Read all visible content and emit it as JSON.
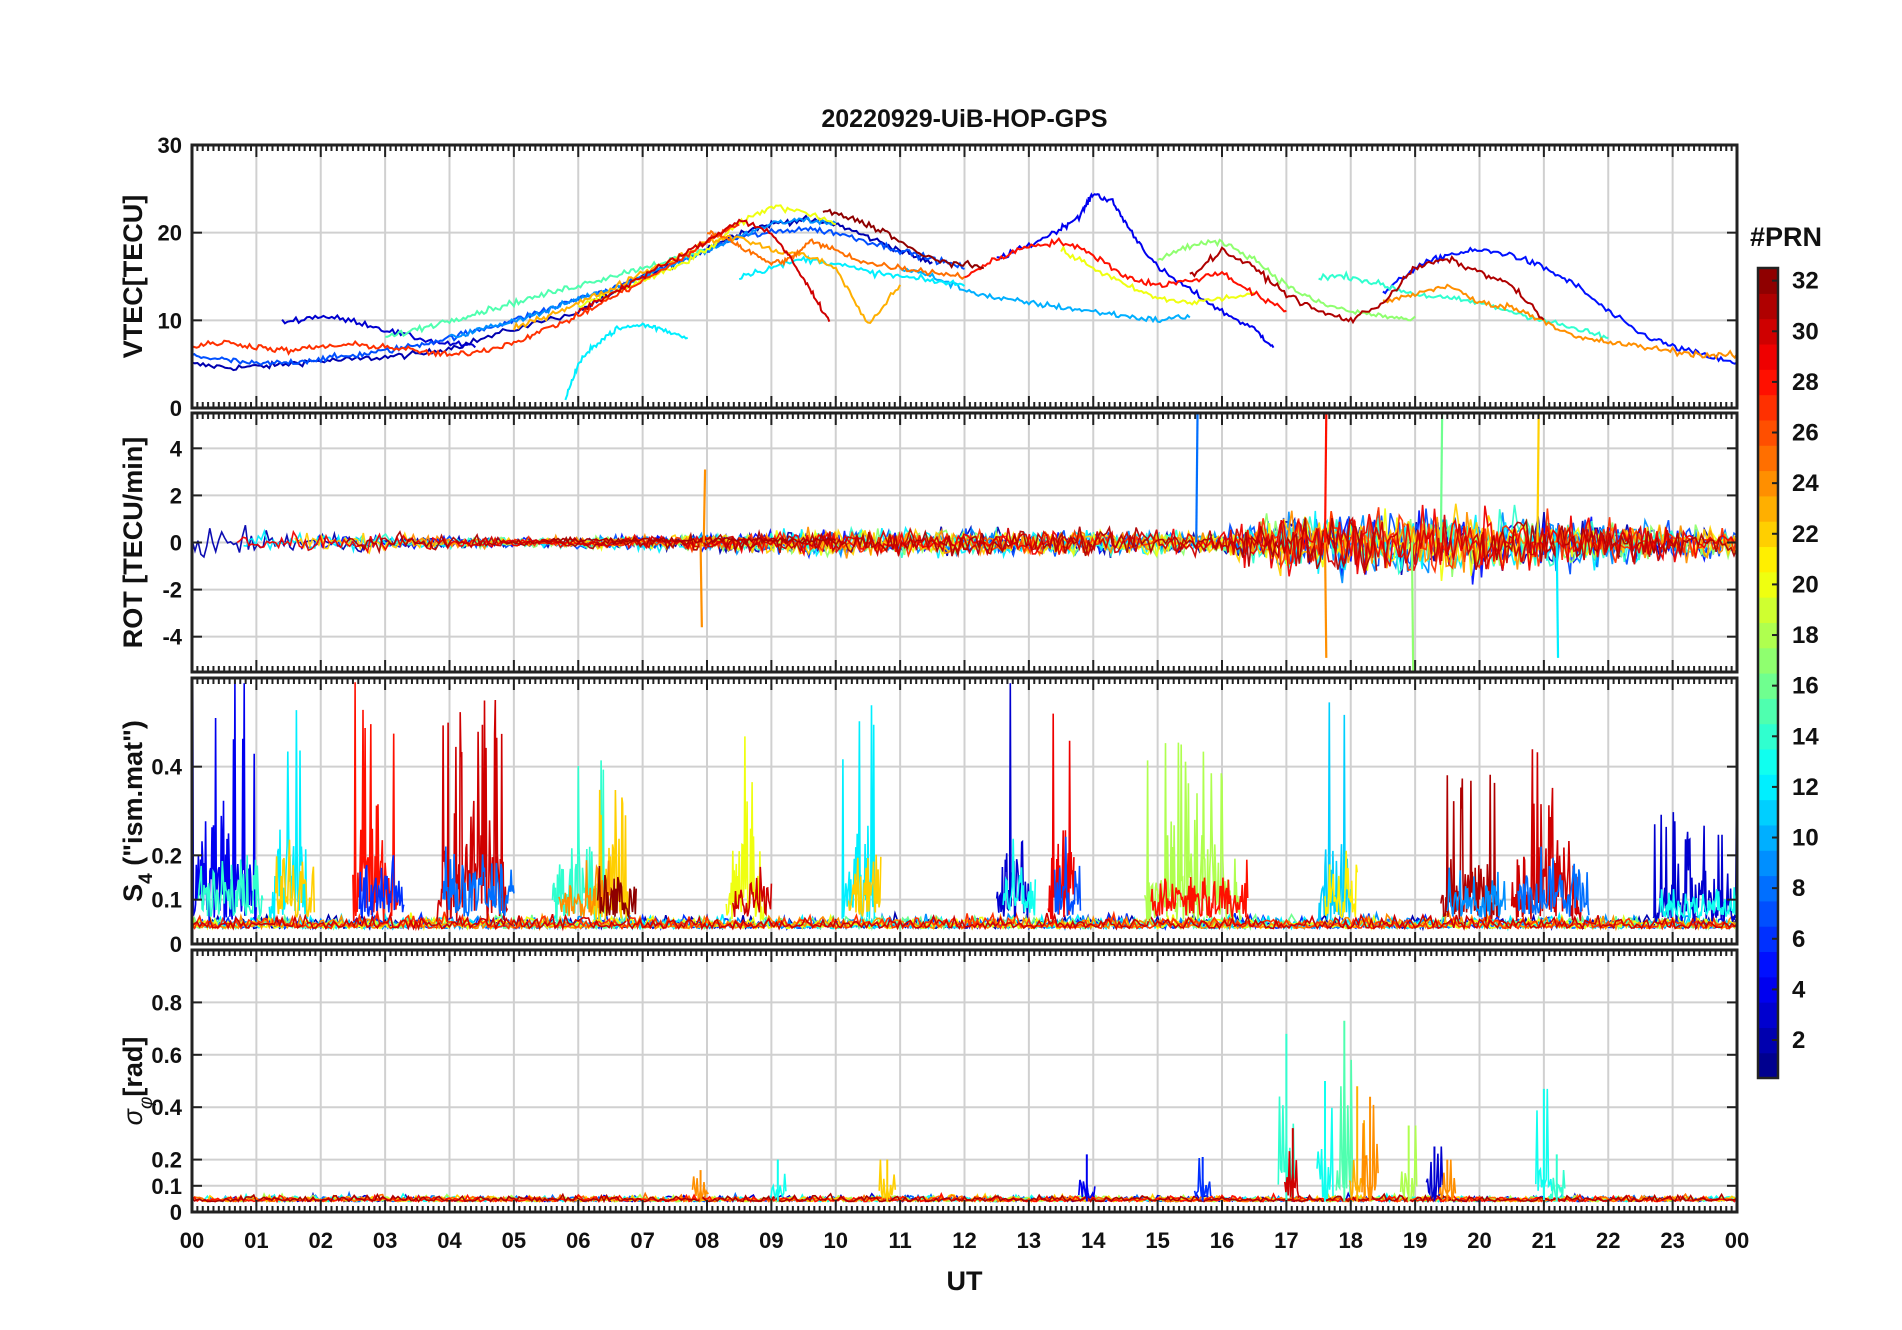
{
  "figure": {
    "title": "20220929-UiB-HOP-GPS",
    "xlabel": "UT",
    "x_ticks": [
      "00",
      "01",
      "02",
      "03",
      "04",
      "05",
      "06",
      "07",
      "08",
      "09",
      "10",
      "11",
      "12",
      "13",
      "14",
      "15",
      "16",
      "17",
      "18",
      "19",
      "20",
      "21",
      "22",
      "23",
      "00"
    ]
  },
  "colorbar": {
    "title": "#PRN",
    "range": [
      1,
      32
    ],
    "ticks": [
      "2",
      "4",
      "6",
      "8",
      "10",
      "12",
      "14",
      "16",
      "18",
      "20",
      "22",
      "24",
      "26",
      "28",
      "30",
      "32"
    ],
    "colormap": "jet",
    "colors": [
      "#00007f",
      "#0000ff",
      "#007fff",
      "#00ffff",
      "#7fff7f",
      "#ffff00",
      "#ff7f00",
      "#ff0000",
      "#7f0000"
    ]
  },
  "chart_data": [
    {
      "type": "line",
      "panel": "vtec",
      "ylabel": "VTEC[TECU]",
      "ylim": [
        0,
        30
      ],
      "y_ticks": [
        0,
        10,
        20,
        30
      ],
      "grid": true,
      "x_range_hours": [
        0,
        24
      ],
      "series": [
        {
          "prn": 2,
          "x": [
            0,
            0.6,
            1.2,
            1.8,
            2.4,
            3,
            3.6,
            4.2,
            5,
            6,
            6.5,
            7,
            7.5,
            8,
            8.5,
            9,
            9.5,
            10,
            10.5,
            11,
            11.5
          ],
          "y": [
            5,
            4.6,
            4.8,
            5.3,
            5.5,
            5.8,
            6.2,
            7.2,
            9,
            11,
            13,
            15,
            16.5,
            18.2,
            20,
            21,
            21.5,
            21,
            19.5,
            18,
            16.5
          ]
        },
        {
          "prn": 3,
          "x": [
            1.4,
            2,
            2.6,
            3.2,
            3.8,
            4.4
          ],
          "y": [
            9.8,
            10.5,
            9.8,
            8.5,
            7.5,
            7
          ]
        },
        {
          "prn": 4,
          "x": [
            12.5,
            13,
            13.5,
            13.8,
            14,
            14.3,
            14.6,
            15,
            15.5,
            16,
            16.5,
            16.8
          ],
          "y": [
            17,
            18.5,
            20.5,
            22,
            24.5,
            23.5,
            20,
            16,
            13.5,
            11,
            9,
            7
          ]
        },
        {
          "prn": 5,
          "x": [
            18.5,
            19,
            19.5,
            20,
            20.5,
            21,
            21.5,
            22,
            22.5,
            23,
            23.5,
            24
          ],
          "y": [
            13,
            16,
            17.5,
            18,
            17.5,
            16,
            14,
            11,
            8.5,
            7,
            6,
            5
          ]
        },
        {
          "prn": 7,
          "x": [
            0,
            0.5,
            1,
            1.5,
            2,
            2.5,
            3,
            3.5,
            4,
            4.5,
            5,
            5.5,
            6,
            6.5,
            7,
            7.5,
            8,
            8.5,
            9,
            9.5,
            10,
            10.5,
            11,
            11.5,
            12
          ],
          "y": [
            6,
            5.5,
            5,
            5.2,
            5.6,
            6,
            6.5,
            7.2,
            8,
            9,
            10,
            11.2,
            12.5,
            13.5,
            15,
            16.5,
            18,
            19.5,
            20,
            20.5,
            20,
            19,
            18,
            17,
            16
          ]
        },
        {
          "prn": 9,
          "x": [
            4,
            4.5,
            5,
            5.5,
            6,
            6.5,
            7,
            7.5,
            8,
            8.5,
            9,
            9.5,
            10
          ],
          "y": [
            8,
            9,
            10,
            11,
            12.5,
            13.5,
            15,
            16.5,
            18,
            19.5,
            21,
            21.5,
            21
          ]
        },
        {
          "prn": 10,
          "x": [
            11,
            11.5,
            12,
            12.5,
            13,
            13.5,
            14,
            14.5,
            15,
            15.5
          ],
          "y": [
            16,
            15,
            13.5,
            12.5,
            12,
            11.5,
            11,
            10.5,
            10,
            10.5
          ]
        },
        {
          "prn": 12,
          "x": [
            5.8,
            6,
            6.3,
            6.6,
            7,
            7.3,
            7.7
          ],
          "y": [
            1,
            5,
            7.5,
            9,
            9.5,
            9,
            8
          ]
        },
        {
          "prn": 12,
          "x": [
            8.5,
            9,
            9.5,
            10,
            10.5,
            11,
            11.5,
            12
          ],
          "y": [
            15,
            16,
            17,
            16.5,
            15.5,
            15,
            14.5,
            14
          ]
        },
        {
          "prn": 14,
          "x": [
            17.5,
            18,
            18.5,
            19,
            19.5,
            20,
            20.5,
            21,
            21.5,
            22
          ],
          "y": [
            15,
            15,
            14,
            13,
            12.5,
            12,
            11,
            10,
            9,
            8
          ]
        },
        {
          "prn": 15,
          "x": [
            3,
            3.5,
            4,
            4.5,
            5,
            5.5,
            6,
            6.5,
            7,
            7.5,
            8
          ],
          "y": [
            8,
            9,
            10,
            11,
            12,
            13,
            14,
            15,
            16,
            17,
            18
          ]
        },
        {
          "prn": 17,
          "x": [
            15,
            15.5,
            16,
            16.5,
            17,
            17.5,
            18,
            18.5,
            19
          ],
          "y": [
            17,
            18.5,
            19,
            17,
            14,
            12,
            11,
            10.5,
            10
          ]
        },
        {
          "prn": 20,
          "x": [
            6,
            6.5,
            7,
            7.5,
            8,
            8.5,
            9,
            9.5,
            10
          ],
          "y": [
            11.5,
            13,
            14.5,
            16,
            18,
            21,
            23,
            22.5,
            21
          ]
        },
        {
          "prn": 20,
          "x": [
            13.5,
            14,
            14.5,
            15,
            15.5,
            16,
            16.5
          ],
          "y": [
            18,
            16,
            14,
            12.5,
            12,
            12.5,
            13
          ]
        },
        {
          "prn": 23,
          "x": [
            5,
            5.5,
            6,
            6.5,
            7,
            7.5,
            8,
            8.5,
            9,
            9.5,
            10,
            10.5,
            11
          ],
          "y": [
            9,
            10.5,
            12,
            13.5,
            15.5,
            17,
            19,
            19.5,
            18,
            17.5,
            16,
            9.5,
            14
          ]
        },
        {
          "prn": 24,
          "x": [
            18.5,
            19,
            19.5,
            20,
            20.5,
            21,
            21.5,
            22,
            22.5,
            23,
            23.5,
            24
          ],
          "y": [
            12,
            13,
            14,
            12,
            11.5,
            10,
            8,
            7.5,
            7,
            6.5,
            6,
            6
          ]
        },
        {
          "prn": 25,
          "x": [
            8,
            8.3,
            8.6,
            9,
            9.3,
            9.6,
            10,
            10.5,
            11,
            11.5,
            12
          ],
          "y": [
            20,
            19.5,
            18,
            16.5,
            17,
            19,
            18,
            16.5,
            16,
            15.5,
            15
          ]
        },
        {
          "prn": 27,
          "x": [
            0,
            0.5,
            1,
            1.5,
            2,
            2.5,
            3,
            3.5,
            4,
            4.5,
            5,
            5.5,
            6,
            6.5,
            7,
            7.5,
            8,
            8.5
          ],
          "y": [
            7,
            7.5,
            7,
            6.5,
            7,
            7.2,
            7,
            6.5,
            6,
            6.5,
            7.5,
            9,
            10.5,
            12.5,
            14.5,
            16.5,
            19,
            21
          ]
        },
        {
          "prn": 28,
          "x": [
            12,
            12.5,
            13,
            13.5,
            14,
            14.5,
            15,
            15.5,
            16,
            16.5,
            17
          ],
          "y": [
            15,
            17,
            18.5,
            19,
            17.5,
            15,
            14,
            14.5,
            15.5,
            13,
            11
          ]
        },
        {
          "prn": 30,
          "x": [
            6,
            6.5,
            7,
            7.5,
            8,
            8.5,
            9,
            9.3,
            9.6,
            9.9
          ],
          "y": [
            11,
            13,
            15,
            17,
            19,
            21.5,
            20,
            17,
            13.5,
            10
          ]
        },
        {
          "prn": 31,
          "x": [
            15.5,
            16,
            16.5,
            17,
            17.5,
            18,
            18.5,
            19,
            19.5,
            20,
            20.5,
            21
          ],
          "y": [
            15,
            18,
            16,
            13,
            11,
            10,
            12,
            16,
            17,
            15.5,
            14,
            10
          ]
        },
        {
          "prn": 32,
          "x": [
            9.8,
            10.3,
            10.8,
            11.3,
            11.8,
            12.3
          ],
          "y": [
            22.5,
            21.5,
            20,
            17.5,
            16.5,
            16
          ]
        }
      ]
    },
    {
      "type": "line",
      "panel": "rot",
      "ylabel": "ROT [TECU/min]",
      "ylim": [
        -5.5,
        5.5
      ],
      "y_ticks": [
        -4,
        -2,
        0,
        2,
        4
      ],
      "grid": true,
      "x_range_hours": [
        0,
        24
      ],
      "noise_profile": [
        {
          "hour": 0,
          "amp": 1.0
        },
        {
          "hour": 3,
          "amp": 0.6
        },
        {
          "hour": 5,
          "amp": 0.3
        },
        {
          "hour": 7,
          "amp": 0.5
        },
        {
          "hour": 10,
          "amp": 0.9
        },
        {
          "hour": 14,
          "amp": 0.9
        },
        {
          "hour": 16,
          "amp": 0.8
        },
        {
          "hour": 17,
          "amp": 2.2
        },
        {
          "hour": 19,
          "amp": 2.6
        },
        {
          "hour": 21,
          "amp": 2.0
        },
        {
          "hour": 24,
          "amp": 1.0
        }
      ],
      "spikes": [
        {
          "hour": 7.9,
          "value": -3.6,
          "prn": 24
        },
        {
          "hour": 7.95,
          "value": 3.1,
          "prn": 24
        },
        {
          "hour": 15.6,
          "value": 5.5,
          "prn": 8
        },
        {
          "hour": 17.6,
          "value": 5.5,
          "prn": 28
        },
        {
          "hour": 17.6,
          "value": -4.9,
          "prn": 24
        },
        {
          "hour": 18.95,
          "value": -5.5,
          "prn": 17
        },
        {
          "hour": 19.4,
          "value": 5.5,
          "prn": 16
        },
        {
          "hour": 20.9,
          "value": 5.5,
          "prn": 22
        },
        {
          "hour": 21.2,
          "value": -4.9,
          "prn": 12
        }
      ]
    },
    {
      "type": "line",
      "panel": "s4",
      "ylabel": "S_4 (\"ism.mat\")",
      "ylabel_main": "S",
      "ylabel_sub": "4",
      "ylabel_rest": " (\"ism.mat\")",
      "ylim": [
        0,
        0.6
      ],
      "y_ticks": [
        0,
        0.1,
        0.2,
        0.4
      ],
      "grid": true,
      "x_range_hours": [
        0,
        24
      ],
      "activity_bursts": [
        {
          "start": 0,
          "end": 1.0,
          "peak": 0.6,
          "prn": 4
        },
        {
          "start": 1.2,
          "end": 1.8,
          "peak": 0.55,
          "prn": 12
        },
        {
          "start": 2.5,
          "end": 3.2,
          "peak": 0.6,
          "prn": 28
        },
        {
          "start": 3.8,
          "end": 4.9,
          "peak": 0.6,
          "prn": 30
        },
        {
          "start": 5.6,
          "end": 6.4,
          "peak": 0.52,
          "prn": 14
        },
        {
          "start": 6.2,
          "end": 6.8,
          "peak": 0.38,
          "prn": 22
        },
        {
          "start": 8.3,
          "end": 8.9,
          "peak": 0.48,
          "prn": 20
        },
        {
          "start": 10.1,
          "end": 10.6,
          "peak": 0.56,
          "prn": 12
        },
        {
          "start": 12.5,
          "end": 13.0,
          "peak": 0.6,
          "prn": 3
        },
        {
          "start": 13.3,
          "end": 13.7,
          "peak": 0.6,
          "prn": 29
        },
        {
          "start": 14.8,
          "end": 16.3,
          "peak": 0.48,
          "prn": 18
        },
        {
          "start": 17.5,
          "end": 18.0,
          "peak": 0.6,
          "prn": 11
        },
        {
          "start": 19.4,
          "end": 20.3,
          "peak": 0.4,
          "prn": 31
        },
        {
          "start": 20.5,
          "end": 21.6,
          "peak": 0.58,
          "prn": 30
        },
        {
          "start": 22.7,
          "end": 24.0,
          "peak": 0.3,
          "prn": 3
        }
      ]
    },
    {
      "type": "line",
      "panel": "sigma_phi",
      "ylabel": "σ_φ[rad]",
      "ylabel_main": "σ",
      "ylabel_sub": "φ",
      "ylabel_rest": "[rad]",
      "ylim": [
        0,
        1.0
      ],
      "y_ticks": [
        0,
        0.1,
        0.2,
        0.4,
        0.6,
        0.8
      ],
      "grid": true,
      "x_range_hours": [
        0,
        24
      ],
      "spikes": [
        {
          "hour": 7.9,
          "value": 0.16,
          "prn": 24
        },
        {
          "hour": 9.1,
          "value": 0.2,
          "prn": 13
        },
        {
          "hour": 10.8,
          "value": 0.2,
          "prn": 22
        },
        {
          "hour": 13.9,
          "value": 0.22,
          "prn": 4
        },
        {
          "hour": 15.7,
          "value": 0.21,
          "prn": 6
        },
        {
          "hour": 17.0,
          "value": 0.68,
          "prn": 14
        },
        {
          "hour": 17.1,
          "value": 0.32,
          "prn": 30
        },
        {
          "hour": 17.6,
          "value": 0.5,
          "prn": 13
        },
        {
          "hour": 17.9,
          "value": 0.73,
          "prn": 15
        },
        {
          "hour": 18.1,
          "value": 0.48,
          "prn": 23
        },
        {
          "hour": 18.3,
          "value": 0.44,
          "prn": 24
        },
        {
          "hour": 18.9,
          "value": 0.33,
          "prn": 18
        },
        {
          "hour": 19.3,
          "value": 0.25,
          "prn": 3
        },
        {
          "hour": 19.5,
          "value": 0.2,
          "prn": 24
        },
        {
          "hour": 21.0,
          "value": 0.47,
          "prn": 13
        },
        {
          "hour": 21.2,
          "value": 0.22,
          "prn": 14
        }
      ]
    }
  ]
}
